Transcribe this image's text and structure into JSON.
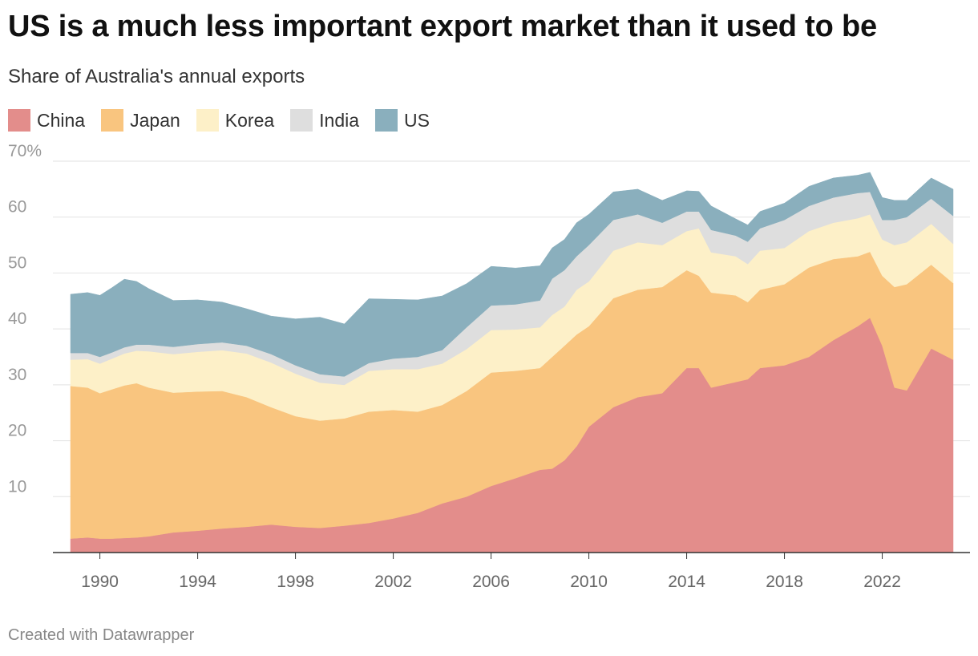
{
  "header": {
    "title": "US is a much less important export market than it used to be",
    "subtitle": "Share of Australia's annual exports"
  },
  "footer": {
    "credit": "Created with Datawrapper"
  },
  "legend": [
    {
      "name": "China",
      "color": "#e38d8b"
    },
    {
      "name": "Japan",
      "color": "#f9c57f"
    },
    {
      "name": "Korea",
      "color": "#fdf0c8"
    },
    {
      "name": "India",
      "color": "#dedede"
    },
    {
      "name": "US",
      "color": "#8aafbd"
    }
  ],
  "chart_data": {
    "type": "area",
    "stacked": true,
    "title": "US is a much less important export market than it used to be",
    "subtitle": "Share of Australia's annual exports",
    "xlabel": "",
    "ylabel": "",
    "ylim": [
      0,
      70
    ],
    "xlim": [
      1988.8,
      2024.9
    ],
    "y_ticks": [
      10,
      20,
      30,
      40,
      50,
      60,
      70
    ],
    "y_tick_labels": [
      "10",
      "20",
      "30",
      "40",
      "50",
      "60",
      "70%"
    ],
    "x_ticks": [
      1990,
      1994,
      1998,
      2002,
      2006,
      2010,
      2014,
      2018,
      2022
    ],
    "x_tick_labels": [
      "1990",
      "1994",
      "1998",
      "2002",
      "2006",
      "2010",
      "2014",
      "2018",
      "2022"
    ],
    "grid": true,
    "legend_position": "top-left",
    "x": [
      1988.8,
      1989.5,
      1990,
      1990.5,
      1991,
      1991.5,
      1992,
      1993,
      1994,
      1995,
      1996,
      1997,
      1998,
      1999,
      2000,
      2001,
      2002,
      2003,
      2004,
      2005,
      2006,
      2007,
      2008,
      2008.5,
      2009,
      2009.5,
      2010,
      2011,
      2012,
      2013,
      2014,
      2014.5,
      2015,
      2016,
      2016.5,
      2017,
      2018,
      2019,
      2020,
      2021,
      2021.5,
      2022,
      2022.5,
      2023,
      2024,
      2024.9
    ],
    "series": [
      {
        "name": "China",
        "color": "#e38d8b",
        "values": [
          2.5,
          2.7,
          2.5,
          2.5,
          2.6,
          2.7,
          2.9,
          3.6,
          3.9,
          4.3,
          4.6,
          5.0,
          4.6,
          4.4,
          4.8,
          5.3,
          6.1,
          7.1,
          8.8,
          10.0,
          11.9,
          13.3,
          14.8,
          15.0,
          16.5,
          19.0,
          22.5,
          26.0,
          27.8,
          28.5,
          33.0,
          33.0,
          29.5,
          30.5,
          31.0,
          33.0,
          33.5,
          35.0,
          38.0,
          40.5,
          42.0,
          37.0,
          29.5,
          29.0,
          36.5,
          34.5
        ]
      },
      {
        "name": "Japan",
        "color": "#f9c57f",
        "values": [
          27.3,
          26.8,
          26.0,
          26.7,
          27.3,
          27.6,
          26.6,
          25.0,
          24.9,
          24.6,
          23.2,
          21.0,
          19.8,
          19.2,
          19.2,
          19.9,
          19.4,
          18.1,
          17.6,
          18.9,
          20.3,
          19.2,
          18.2,
          20.0,
          20.5,
          20.0,
          18.0,
          19.5,
          19.2,
          19.0,
          17.5,
          16.5,
          17.0,
          15.5,
          13.8,
          14.0,
          14.5,
          16.0,
          14.5,
          12.5,
          11.8,
          12.5,
          18.0,
          19.0,
          15.0,
          13.7
        ]
      },
      {
        "name": "Korea",
        "color": "#fdf0c8",
        "values": [
          4.7,
          5.1,
          5.3,
          5.5,
          5.7,
          5.8,
          6.5,
          6.9,
          7.1,
          7.3,
          7.8,
          8.0,
          7.6,
          6.8,
          6.0,
          7.3,
          7.3,
          7.6,
          7.4,
          7.5,
          7.6,
          7.4,
          7.3,
          7.5,
          7.0,
          8.0,
          8.0,
          8.5,
          8.5,
          7.5,
          7.0,
          8.5,
          7.2,
          7.0,
          6.8,
          7.0,
          6.5,
          6.5,
          6.5,
          6.8,
          6.7,
          6.5,
          7.5,
          7.5,
          7.3,
          7.0
        ]
      },
      {
        "name": "India",
        "color": "#dedede",
        "values": [
          1.2,
          1.1,
          1.2,
          1.1,
          1.1,
          1.1,
          1.2,
          1.3,
          1.4,
          1.4,
          1.4,
          1.5,
          1.5,
          1.5,
          1.5,
          1.4,
          1.9,
          2.2,
          2.4,
          3.9,
          4.4,
          4.5,
          4.8,
          6.5,
          6.5,
          6.0,
          6.5,
          5.5,
          5.0,
          4.0,
          3.5,
          3.0,
          4.0,
          3.7,
          4.0,
          4.0,
          5.0,
          4.5,
          4.5,
          4.5,
          4.0,
          3.5,
          4.5,
          4.5,
          4.5,
          5.0
        ]
      },
      {
        "name": "US",
        "color": "#8aafbd",
        "values": [
          10.5,
          10.8,
          11.0,
          11.6,
          12.2,
          11.3,
          10.0,
          8.3,
          7.9,
          7.2,
          6.6,
          6.8,
          8.3,
          10.2,
          9.4,
          11.5,
          10.6,
          10.2,
          9.7,
          7.8,
          7.0,
          6.5,
          6.2,
          5.5,
          5.5,
          6.0,
          5.5,
          5.0,
          4.5,
          4.0,
          3.7,
          3.6,
          4.3,
          3.0,
          3.0,
          3.0,
          3.0,
          3.5,
          3.5,
          3.2,
          3.5,
          4.0,
          3.5,
          3.0,
          3.7,
          4.8
        ]
      }
    ]
  }
}
